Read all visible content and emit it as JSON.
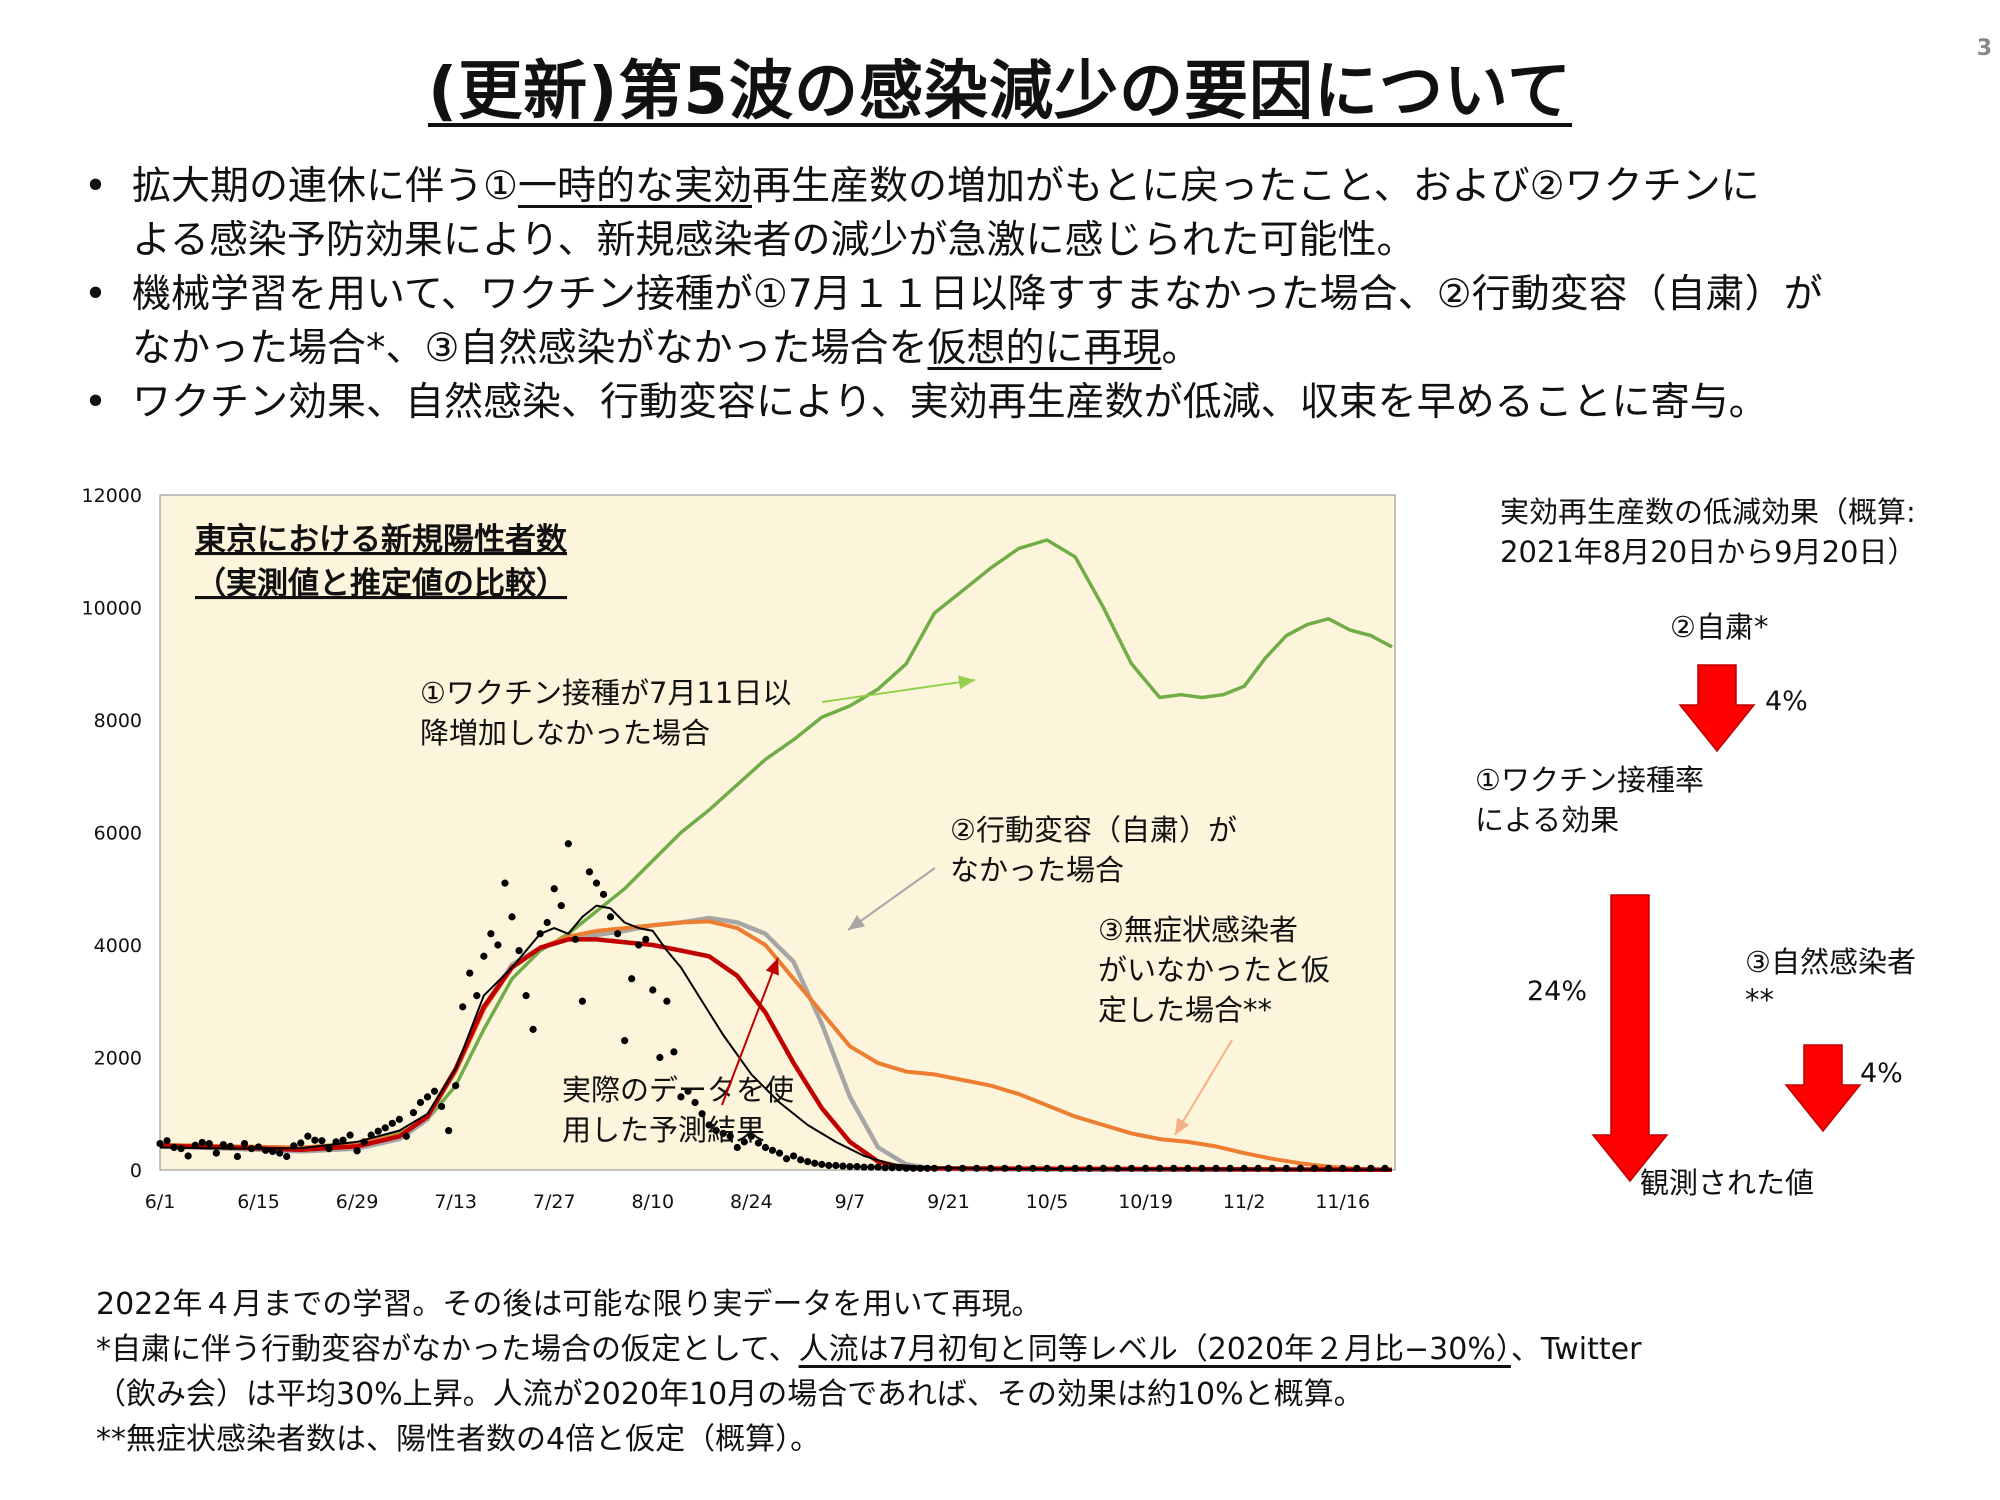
{
  "page_number": "3",
  "title": "(更新)第5波の感染減少の要因について",
  "bullets": [
    {
      "pre": "拡大期の連休に伴う①",
      "u1": "一時的な実効",
      "mid": "再生産数の増加がもとに戻ったこと、および②ワクチンに",
      "line2": "よる感染予防効果により、新規感染者の減少が急激に感じられた可能性。"
    },
    {
      "line1": "機械学習を用いて、ワクチン接種が①7月１１日以降すすまなかった場合、②行動変容（自粛）が",
      "pre2": "なかった場合*、③自然感染がなかった場合を",
      "u2": "仮想的に再現",
      "post2": "。"
    },
    {
      "line1": "ワクチン効果、自然感染、行動変容により、実効再生産数が低減、収束を早めることに寄与。"
    }
  ],
  "chart_data": {
    "type": "line",
    "title": [
      "東京における新規陽性者数",
      "（実測値と推定値の比較）"
    ],
    "xlabel": "",
    "ylabel": "",
    "ylim": [
      0,
      12000
    ],
    "yticks": [
      "0",
      "2000",
      "4000",
      "6000",
      "8000",
      "10000",
      "12000"
    ],
    "xticks": [
      "6/1",
      "6/15",
      "6/29",
      "7/13",
      "7/27",
      "8/10",
      "8/24",
      "9/7",
      "9/21",
      "10/5",
      "10/19",
      "11/2",
      "11/16"
    ],
    "x_range_days": [
      0,
      175
    ],
    "background": "#fdf4dc",
    "annotations": {
      "vaccine": [
        "①ワクチン接種が7月11日以",
        "降増加しなかった場合"
      ],
      "behavior": [
        "②行動変容（自粛）が",
        "なかった場合"
      ],
      "asymptomatic": [
        "③無症状感染者",
        "がいなかったと仮",
        "定した場合**"
      ],
      "actual": [
        "実際のデータを使",
        "用した予測結果"
      ]
    },
    "series": [
      {
        "key": "vaccine",
        "color": "#70ad47",
        "x": [
          0,
          10,
          20,
          28,
          34,
          38,
          42,
          46,
          50,
          54,
          58,
          62,
          66,
          70,
          74,
          78,
          82,
          86,
          90,
          94,
          98,
          102,
          106,
          110,
          114,
          118,
          122,
          126,
          130,
          134,
          138,
          142,
          145,
          148,
          151,
          154,
          157,
          160,
          163,
          166,
          169,
          172,
          175
        ],
        "values": [
          450,
          420,
          400,
          480,
          650,
          900,
          1500,
          2500,
          3400,
          3900,
          4200,
          4600,
          5000,
          5500,
          6000,
          6400,
          6850,
          7300,
          7650,
          8050,
          8250,
          8550,
          9000,
          9900,
          10300,
          10700,
          11050,
          11200,
          10900,
          10000,
          9000,
          8400,
          8450,
          8400,
          8450,
          8600,
          9100,
          9500,
          9700,
          9800,
          9600,
          9500,
          9300
        ]
      },
      {
        "key": "behavior",
        "color": "#a6a6a6",
        "x": [
          0,
          10,
          20,
          28,
          34,
          38,
          42,
          46,
          50,
          54,
          58,
          62,
          66,
          70,
          74,
          78,
          82,
          86,
          90,
          94,
          98,
          102,
          106,
          110,
          130,
          175
        ],
        "values": [
          420,
          380,
          330,
          380,
          550,
          900,
          1800,
          2900,
          3650,
          3950,
          4100,
          4180,
          4250,
          4350,
          4400,
          4480,
          4400,
          4200,
          3700,
          2600,
          1300,
          400,
          100,
          20,
          5,
          5
        ]
      },
      {
        "key": "asymptomatic",
        "color": "#ed7d31",
        "x": [
          0,
          10,
          20,
          28,
          34,
          38,
          42,
          46,
          50,
          54,
          58,
          62,
          66,
          70,
          74,
          78,
          82,
          86,
          90,
          94,
          98,
          102,
          106,
          110,
          114,
          118,
          122,
          126,
          130,
          134,
          138,
          142,
          146,
          150,
          154,
          158,
          162,
          166,
          170,
          175
        ],
        "values": [
          450,
          420,
          400,
          460,
          620,
          950,
          1750,
          2850,
          3600,
          3950,
          4150,
          4250,
          4300,
          4350,
          4400,
          4420,
          4300,
          4000,
          3400,
          2800,
          2200,
          1900,
          1750,
          1700,
          1600,
          1500,
          1350,
          1150,
          950,
          800,
          650,
          550,
          500,
          420,
          300,
          200,
          120,
          60,
          20,
          5
        ]
      },
      {
        "key": "actual_prediction",
        "color": "#c00000",
        "x": [
          0,
          10,
          20,
          28,
          34,
          38,
          42,
          46,
          50,
          54,
          58,
          62,
          66,
          70,
          74,
          78,
          82,
          86,
          90,
          94,
          98,
          102,
          106,
          175
        ],
        "values": [
          430,
          400,
          360,
          420,
          600,
          950,
          1800,
          2900,
          3600,
          3950,
          4100,
          4100,
          4050,
          4000,
          3900,
          3800,
          3450,
          2800,
          1900,
          1100,
          500,
          150,
          30,
          5
        ]
      },
      {
        "key": "observed_avg",
        "color": "#000000",
        "x": [
          0,
          10,
          20,
          28,
          34,
          38,
          42,
          46,
          50,
          54,
          56,
          58,
          60,
          62,
          64,
          66,
          68,
          70,
          72,
          74,
          76,
          78,
          80,
          84,
          88,
          92,
          96,
          100,
          104,
          110,
          120,
          175
        ],
        "values": [
          400,
          380,
          390,
          500,
          700,
          1000,
          1800,
          3100,
          3600,
          4200,
          4300,
          4200,
          4500,
          4700,
          4650,
          4400,
          4300,
          4250,
          3900,
          3600,
          3200,
          2800,
          2400,
          1700,
          1200,
          800,
          500,
          250,
          100,
          40,
          20,
          5
        ]
      }
    ],
    "observed_points": {
      "color": "#000000",
      "x": [
        0,
        1,
        2,
        3,
        4,
        5,
        6,
        7,
        8,
        9,
        10,
        11,
        12,
        13,
        14,
        15,
        16,
        17,
        18,
        19,
        20,
        21,
        22,
        23,
        24,
        25,
        26,
        27,
        28,
        29,
        30,
        31,
        32,
        33,
        34,
        35,
        36,
        37,
        38,
        39,
        40,
        41,
        42,
        43,
        44,
        45,
        46,
        47,
        48,
        49,
        50,
        51,
        52,
        53,
        54,
        55,
        56,
        57,
        58,
        59,
        60,
        61,
        62,
        63,
        64,
        65,
        66,
        67,
        68,
        69,
        70,
        71,
        72,
        73,
        74,
        75,
        76,
        77,
        78,
        79,
        80,
        81,
        82,
        83,
        84,
        85,
        86,
        87,
        88,
        89,
        90,
        91,
        92,
        93,
        94,
        95,
        96,
        97,
        98,
        99,
        100,
        101,
        102,
        103,
        104,
        105,
        106,
        107,
        108,
        109,
        110,
        112,
        114,
        116,
        118,
        120,
        122,
        124,
        126,
        128,
        130,
        132,
        134,
        136,
        138,
        140,
        142,
        144,
        146,
        148,
        150,
        152,
        154,
        156,
        158,
        160,
        162,
        164,
        166,
        168,
        170,
        172,
        174
      ],
      "values": [
        470,
        520,
        400,
        380,
        250,
        440,
        490,
        470,
        300,
        450,
        420,
        240,
        470,
        380,
        410,
        350,
        330,
        300,
        240,
        430,
        480,
        600,
        530,
        520,
        380,
        500,
        530,
        620,
        340,
        500,
        620,
        690,
        750,
        830,
        900,
        600,
        1020,
        1200,
        1300,
        1400,
        1130,
        700,
        1500,
        2900,
        3500,
        3100,
        3800,
        4200,
        4000,
        5100,
        4500,
        3900,
        3100,
        2500,
        4200,
        4400,
        5000,
        4700,
        5800,
        4100,
        3000,
        5300,
        5100,
        4900,
        4500,
        4200,
        2300,
        3400,
        4000,
        4100,
        3200,
        2000,
        3000,
        2100,
        1300,
        1400,
        1200,
        1000,
        800,
        700,
        650,
        600,
        400,
        500,
        600,
        480,
        400,
        350,
        300,
        200,
        250,
        180,
        150,
        120,
        100,
        80,
        80,
        70,
        60,
        60,
        50,
        50,
        50,
        40,
        40,
        40,
        30,
        30,
        30,
        30,
        30,
        30,
        30,
        30,
        30,
        30,
        30,
        30,
        30,
        30,
        30,
        30,
        30,
        30,
        30,
        30,
        30,
        30,
        30,
        30,
        30,
        30,
        30,
        30,
        30,
        30,
        30,
        30,
        30,
        30,
        30,
        30,
        30
      ]
    }
  },
  "right_panel": {
    "title": [
      "実効再生産数の低減効果（概算:",
      "2021年8月20日から9月20日）"
    ],
    "behavior_label": "②自粛*",
    "behavior_pct": "4%",
    "behavior_value": 4,
    "vaccine_label": [
      "①ワクチン接種率",
      "による効果"
    ],
    "vaccine_pct": "24%",
    "vaccine_value": 24,
    "natural_label": [
      "③自然感染者",
      "**"
    ],
    "natural_pct": "4%",
    "natural_value": 4,
    "observed_label": "観測された値",
    "arrow_color": "#ff0000"
  },
  "notes": {
    "line1": "2022年４月までの学習。その後は可能な限り実データを用いて再現。",
    "line2_pre": "*自粛に伴う行動変容がなかった場合の仮定として、",
    "line2_u": "人流は7月初旬と同等レベル（2020年２月比−30%）",
    "line2_post": "、Twitter",
    "line3": "（飲み会）は平均30%上昇。人流が2020年10月の場合であれば、その効果は約10%と概算。",
    "line4": "**無症状感染者数は、陽性者数の4倍と仮定（概算）。"
  }
}
